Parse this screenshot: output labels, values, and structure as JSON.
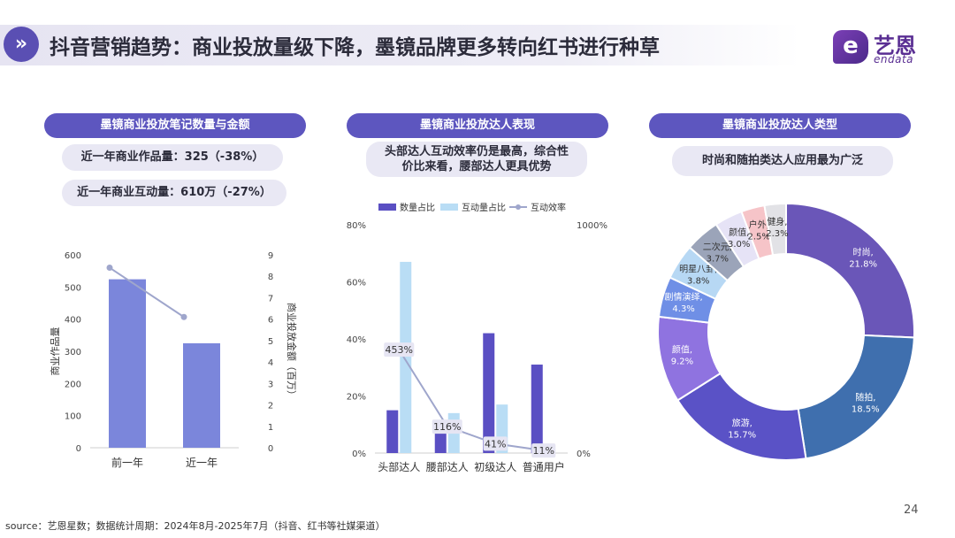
{
  "header": {
    "badge": "»",
    "title": "抖音营销趋势：商业投放量级下降，墨镜品牌更多转向红书进行种草",
    "logo_cn": "艺恩",
    "logo_en": "endata",
    "logo_mark": "e"
  },
  "panel1": {
    "heading": "墨镜商业投放笔记数量与金额",
    "stat1": "近一年商业作品量：325（-38%）",
    "stat2": "近一年商业互动量：610万（-27%）"
  },
  "panel2": {
    "heading": "墨镜商业投放达人表现",
    "note_line1": "头部达人互动效率仍是最高，综合性",
    "note_line2": "价比来看，腰部达人更具优势"
  },
  "panel3": {
    "heading": "墨镜商业投放达人类型",
    "note": "时尚和随拍类达人应用最为广泛"
  },
  "footer": {
    "source": "source：艺恩星数；数据统计周期：2024年8月-2025年7月（抖音、红书等社媒渠道）",
    "page": "24"
  },
  "colors": {
    "accent": "#5d56bf",
    "bar_primary": "#7b86db",
    "bar_dark": "#5a4fc3",
    "bar_light": "#b9ddf5",
    "line": "#9fa6cc"
  },
  "chart_data": [
    {
      "type": "bar",
      "title": "墨镜商业投放笔记数量与金额",
      "categories": [
        "前一年",
        "近一年"
      ],
      "series": [
        {
          "name": "商业作品量",
          "axis": "left",
          "kind": "bar",
          "values": [
            524,
            325
          ]
        },
        {
          "name": "商业投放金额（百万）",
          "axis": "right",
          "kind": "line",
          "values": [
            8.4,
            6.1
          ]
        }
      ],
      "ylabel": "商业作品量",
      "y2label": "商业投放金额（百万）",
      "ylim": [
        0,
        600
      ],
      "yticks": [
        0,
        100,
        200,
        300,
        400,
        500,
        600
      ],
      "y2lim": [
        0,
        9
      ],
      "y2ticks": [
        0,
        1,
        2,
        3,
        4,
        5,
        6,
        7,
        8,
        9
      ]
    },
    {
      "type": "bar",
      "title": "墨镜商业投放达人表现",
      "categories": [
        "头部达人",
        "腰部达人",
        "初级达人",
        "普通用户"
      ],
      "legend": [
        "数量占比",
        "互动量占比",
        "互动效率"
      ],
      "series": [
        {
          "name": "数量占比",
          "axis": "left",
          "kind": "bar",
          "values": [
            15,
            7,
            42,
            31
          ]
        },
        {
          "name": "互动量占比",
          "axis": "left",
          "kind": "bar",
          "values": [
            67,
            14,
            17,
            0
          ]
        },
        {
          "name": "互动效率",
          "axis": "right",
          "kind": "line",
          "values": [
            453,
            116,
            41,
            11
          ],
          "labels": [
            "453%",
            "116%",
            "41%",
            "11%"
          ]
        }
      ],
      "ylim": [
        0,
        80
      ],
      "yticks": [
        "0%",
        "20%",
        "40%",
        "60%",
        "80%"
      ],
      "y2lim": [
        0,
        1000
      ],
      "y2ticks": [
        "0%",
        "1000%"
      ]
    },
    {
      "type": "pie",
      "title": "墨镜商业投放达人类型",
      "slices": [
        {
          "label": "时尚",
          "value": 21.8,
          "pct": "21.8%",
          "color": "#6a56b8"
        },
        {
          "label": "随拍",
          "value": 18.5,
          "pct": "18.5%",
          "color": "#3f6fae"
        },
        {
          "label": "旅游",
          "value": 15.7,
          "pct": "15.7%",
          "color": "#5a52c6"
        },
        {
          "label": "颜值",
          "value": 9.2,
          "pct": "9.2%",
          "color": "#8f73e0"
        },
        {
          "label": "剧情演绎",
          "value": 4.3,
          "pct": "4.3%",
          "color": "#6f8fe6"
        },
        {
          "label": "明星八卦",
          "value": 3.8,
          "pct": "3.8%",
          "color": "#b7d8f4"
        },
        {
          "label": "二次元",
          "value": 3.7,
          "pct": "3.7%",
          "color": "#9ba4b9"
        },
        {
          "label": "颜值",
          "value": 3.0,
          "pct": "3.0%",
          "color": "#e6e3f6"
        },
        {
          "label": "户外",
          "value": 2.5,
          "pct": "2.5%",
          "color": "#f6c4c8"
        },
        {
          "label": "健身",
          "value": 2.3,
          "pct": "2.3%",
          "color": "#e2e2e6"
        }
      ]
    }
  ]
}
